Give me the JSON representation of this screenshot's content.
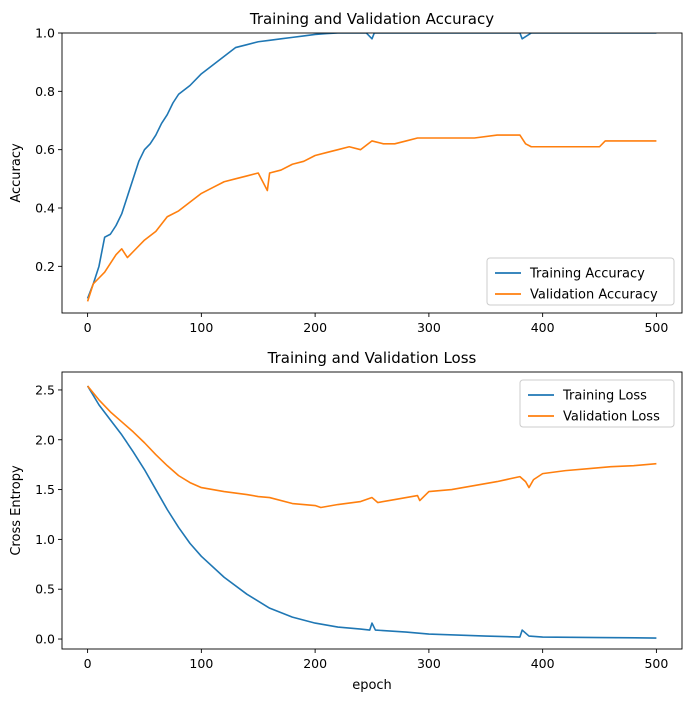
{
  "chart_data": [
    {
      "type": "line",
      "title": "Training and Validation Accuracy",
      "xlabel": "",
      "ylabel": "Accuracy",
      "xlim": [
        -22.5,
        522.5
      ],
      "ylim": [
        0.04,
        1.0
      ],
      "xticks": [
        0,
        100,
        200,
        300,
        400,
        500
      ],
      "yticks": [
        0.2,
        0.4,
        0.6,
        0.8,
        1.0
      ],
      "ytick_labels": [
        "0.2",
        "0.4",
        "0.6",
        "0.8",
        "1.0"
      ],
      "legend_position": "lower right",
      "grid": false,
      "series": [
        {
          "name": "Training Accuracy",
          "color": "#1f77b4",
          "points": [
            [
              0,
              0.09
            ],
            [
              5,
              0.14
            ],
            [
              10,
              0.2
            ],
            [
              15,
              0.3
            ],
            [
              20,
              0.31
            ],
            [
              25,
              0.34
            ],
            [
              30,
              0.38
            ],
            [
              35,
              0.44
            ],
            [
              40,
              0.5
            ],
            [
              45,
              0.56
            ],
            [
              50,
              0.6
            ],
            [
              55,
              0.62
            ],
            [
              60,
              0.65
            ],
            [
              65,
              0.69
            ],
            [
              70,
              0.72
            ],
            [
              75,
              0.76
            ],
            [
              80,
              0.79
            ],
            [
              90,
              0.82
            ],
            [
              100,
              0.86
            ],
            [
              110,
              0.89
            ],
            [
              120,
              0.92
            ],
            [
              130,
              0.95
            ],
            [
              140,
              0.96
            ],
            [
              150,
              0.97
            ],
            [
              160,
              0.975
            ],
            [
              170,
              0.98
            ],
            [
              180,
              0.985
            ],
            [
              190,
              0.99
            ],
            [
              200,
              0.995
            ],
            [
              210,
              0.998
            ],
            [
              220,
              1.0
            ],
            [
              240,
              1.0
            ],
            [
              245,
              1.0
            ],
            [
              250,
              0.98
            ],
            [
              252,
              1.0
            ],
            [
              300,
              1.0
            ],
            [
              380,
              1.0
            ],
            [
              382,
              0.98
            ],
            [
              390,
              1.0
            ],
            [
              500,
              1.0
            ]
          ]
        },
        {
          "name": "Validation Accuracy",
          "color": "#ff7f0e",
          "points": [
            [
              0,
              0.08
            ],
            [
              5,
              0.14
            ],
            [
              10,
              0.16
            ],
            [
              15,
              0.18
            ],
            [
              20,
              0.21
            ],
            [
              25,
              0.24
            ],
            [
              30,
              0.26
            ],
            [
              35,
              0.23
            ],
            [
              40,
              0.25
            ],
            [
              50,
              0.29
            ],
            [
              60,
              0.32
            ],
            [
              70,
              0.37
            ],
            [
              80,
              0.39
            ],
            [
              90,
              0.42
            ],
            [
              100,
              0.45
            ],
            [
              110,
              0.47
            ],
            [
              120,
              0.49
            ],
            [
              130,
              0.5
            ],
            [
              140,
              0.51
            ],
            [
              150,
              0.52
            ],
            [
              158,
              0.46
            ],
            [
              160,
              0.52
            ],
            [
              170,
              0.53
            ],
            [
              180,
              0.55
            ],
            [
              190,
              0.56
            ],
            [
              200,
              0.58
            ],
            [
              210,
              0.59
            ],
            [
              220,
              0.6
            ],
            [
              230,
              0.61
            ],
            [
              240,
              0.6
            ],
            [
              250,
              0.63
            ],
            [
              260,
              0.62
            ],
            [
              270,
              0.62
            ],
            [
              280,
              0.63
            ],
            [
              290,
              0.64
            ],
            [
              300,
              0.64
            ],
            [
              320,
              0.64
            ],
            [
              340,
              0.64
            ],
            [
              360,
              0.65
            ],
            [
              380,
              0.65
            ],
            [
              385,
              0.62
            ],
            [
              390,
              0.61
            ],
            [
              400,
              0.61
            ],
            [
              410,
              0.61
            ],
            [
              420,
              0.61
            ],
            [
              440,
              0.61
            ],
            [
              450,
              0.61
            ],
            [
              455,
              0.63
            ],
            [
              470,
              0.63
            ],
            [
              500,
              0.63
            ]
          ]
        }
      ]
    },
    {
      "type": "line",
      "title": "Training and Validation Loss",
      "xlabel": "epoch",
      "ylabel": "Cross Entropy",
      "xlim": [
        -22.5,
        522.5
      ],
      "ylim": [
        -0.1,
        2.68
      ],
      "xticks": [
        0,
        100,
        200,
        300,
        400,
        500
      ],
      "yticks": [
        0,
        0.5,
        1.0,
        1.5,
        2.0,
        2.5
      ],
      "ytick_labels": [
        "0.0",
        "0.5",
        "1.0",
        "1.5",
        "2.0",
        "2.5"
      ],
      "legend_position": "upper right",
      "grid": false,
      "series": [
        {
          "name": "Training Loss",
          "color": "#1f77b4",
          "points": [
            [
              0,
              2.54
            ],
            [
              10,
              2.35
            ],
            [
              20,
              2.2
            ],
            [
              30,
              2.05
            ],
            [
              40,
              1.88
            ],
            [
              50,
              1.7
            ],
            [
              60,
              1.5
            ],
            [
              70,
              1.3
            ],
            [
              80,
              1.12
            ],
            [
              90,
              0.96
            ],
            [
              100,
              0.83
            ],
            [
              120,
              0.62
            ],
            [
              140,
              0.45
            ],
            [
              160,
              0.31
            ],
            [
              180,
              0.22
            ],
            [
              200,
              0.16
            ],
            [
              220,
              0.12
            ],
            [
              240,
              0.1
            ],
            [
              248,
              0.09
            ],
            [
              250,
              0.16
            ],
            [
              253,
              0.09
            ],
            [
              280,
              0.07
            ],
            [
              300,
              0.05
            ],
            [
              350,
              0.03
            ],
            [
              380,
              0.02
            ],
            [
              382,
              0.09
            ],
            [
              388,
              0.03
            ],
            [
              400,
              0.02
            ],
            [
              450,
              0.015
            ],
            [
              500,
              0.01
            ]
          ]
        },
        {
          "name": "Validation Loss",
          "color": "#ff7f0e",
          "points": [
            [
              0,
              2.54
            ],
            [
              10,
              2.4
            ],
            [
              20,
              2.28
            ],
            [
              30,
              2.18
            ],
            [
              40,
              2.08
            ],
            [
              50,
              1.97
            ],
            [
              60,
              1.85
            ],
            [
              70,
              1.74
            ],
            [
              80,
              1.64
            ],
            [
              90,
              1.57
            ],
            [
              100,
              1.52
            ],
            [
              120,
              1.48
            ],
            [
              140,
              1.45
            ],
            [
              150,
              1.43
            ],
            [
              160,
              1.42
            ],
            [
              180,
              1.36
            ],
            [
              200,
              1.34
            ],
            [
              205,
              1.32
            ],
            [
              220,
              1.35
            ],
            [
              240,
              1.38
            ],
            [
              250,
              1.42
            ],
            [
              255,
              1.37
            ],
            [
              270,
              1.4
            ],
            [
              290,
              1.44
            ],
            [
              292,
              1.39
            ],
            [
              300,
              1.48
            ],
            [
              320,
              1.5
            ],
            [
              340,
              1.54
            ],
            [
              360,
              1.58
            ],
            [
              380,
              1.63
            ],
            [
              385,
              1.58
            ],
            [
              388,
              1.52
            ],
            [
              392,
              1.6
            ],
            [
              400,
              1.66
            ],
            [
              420,
              1.69
            ],
            [
              440,
              1.71
            ],
            [
              460,
              1.73
            ],
            [
              480,
              1.74
            ],
            [
              500,
              1.76
            ]
          ]
        }
      ]
    }
  ]
}
